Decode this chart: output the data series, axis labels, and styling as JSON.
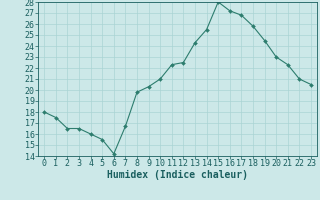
{
  "xlabel": "Humidex (Indice chaleur)",
  "ylabel": "",
  "x_values": [
    0,
    1,
    2,
    3,
    4,
    5,
    6,
    7,
    8,
    9,
    10,
    11,
    12,
    13,
    14,
    15,
    16,
    17,
    18,
    19,
    20,
    21,
    22,
    23
  ],
  "y_values": [
    18,
    17.5,
    16.5,
    16.5,
    16.0,
    15.5,
    14.2,
    16.7,
    19.8,
    20.3,
    21.0,
    22.3,
    22.5,
    24.3,
    25.5,
    28.0,
    27.2,
    26.8,
    25.8,
    24.5,
    23.0,
    22.3,
    21.0,
    20.5
  ],
  "ylim": [
    14,
    28
  ],
  "xlim": [
    -0.5,
    23.5
  ],
  "yticks": [
    14,
    15,
    16,
    17,
    18,
    19,
    20,
    21,
    22,
    23,
    24,
    25,
    26,
    27,
    28
  ],
  "xticks": [
    0,
    1,
    2,
    3,
    4,
    5,
    6,
    7,
    8,
    9,
    10,
    11,
    12,
    13,
    14,
    15,
    16,
    17,
    18,
    19,
    20,
    21,
    22,
    23
  ],
  "line_color": "#2d7d6e",
  "marker_color": "#2d7d6e",
  "bg_color": "#cce8e8",
  "grid_color": "#aad4d4",
  "text_color": "#1a5f5f",
  "font_size": 6,
  "xlabel_fontsize": 7
}
